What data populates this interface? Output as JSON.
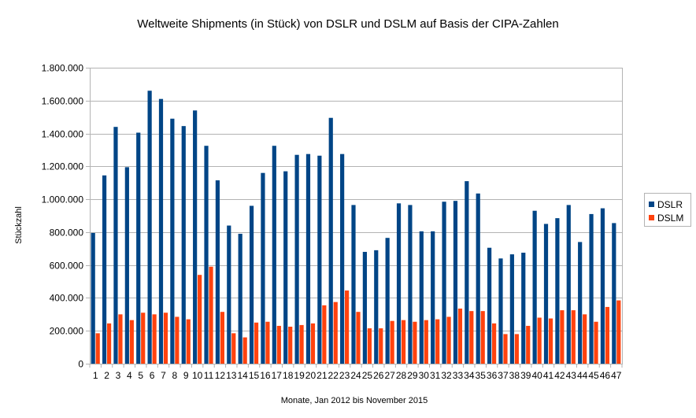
{
  "chart_data": {
    "type": "bar",
    "title": "Weltweite Shipments (in Stück) von DSLR und DSLM auf Basis der CIPA-Zahlen",
    "xlabel": "Monate, Jan 2012 bis November 2015",
    "ylabel": "Stückzahl",
    "ylim": [
      0,
      1800000
    ],
    "y_ticks": [
      0,
      200000,
      400000,
      600000,
      800000,
      1000000,
      1200000,
      1400000,
      1600000,
      1800000
    ],
    "y_tick_labels": [
      "0",
      "200.000",
      "400.000",
      "600.000",
      "800.000",
      "1.000.000",
      "1.200.000",
      "1.400.000",
      "1.600.000",
      "1.800.000"
    ],
    "grid": true,
    "legend_position": "right",
    "categories": [
      "1",
      "2",
      "3",
      "4",
      "5",
      "6",
      "7",
      "8",
      "9",
      "10",
      "11",
      "12",
      "13",
      "14",
      "15",
      "16",
      "17",
      "18",
      "19",
      "20",
      "21",
      "22",
      "23",
      "24",
      "25",
      "26",
      "27",
      "28",
      "29",
      "30",
      "31",
      "32",
      "33",
      "34",
      "35",
      "36",
      "37",
      "38",
      "39",
      "40",
      "41",
      "42",
      "43",
      "44",
      "45",
      "46",
      "47"
    ],
    "series": [
      {
        "name": "DSLR",
        "color": "#004586",
        "values": [
          795000,
          1145000,
          1440000,
          1195000,
          1405000,
          1660000,
          1610000,
          1490000,
          1445000,
          1540000,
          1325000,
          1115000,
          840000,
          790000,
          960000,
          1160000,
          1325000,
          1170000,
          1270000,
          1275000,
          1265000,
          1495000,
          1275000,
          965000,
          680000,
          690000,
          765000,
          975000,
          965000,
          805000,
          805000,
          985000,
          990000,
          1110000,
          1035000,
          705000,
          640000,
          665000,
          675000,
          930000,
          850000,
          885000,
          965000,
          740000,
          910000,
          945000,
          855000
        ]
      },
      {
        "name": "DSLM",
        "color": "#ff420e",
        "values": [
          185000,
          245000,
          300000,
          265000,
          310000,
          300000,
          310000,
          285000,
          270000,
          540000,
          590000,
          315000,
          185000,
          160000,
          250000,
          255000,
          230000,
          225000,
          235000,
          245000,
          355000,
          375000,
          445000,
          315000,
          215000,
          215000,
          260000,
          265000,
          255000,
          265000,
          270000,
          285000,
          335000,
          320000,
          320000,
          245000,
          180000,
          180000,
          230000,
          280000,
          275000,
          325000,
          325000,
          300000,
          255000,
          345000,
          385000
        ]
      }
    ]
  }
}
